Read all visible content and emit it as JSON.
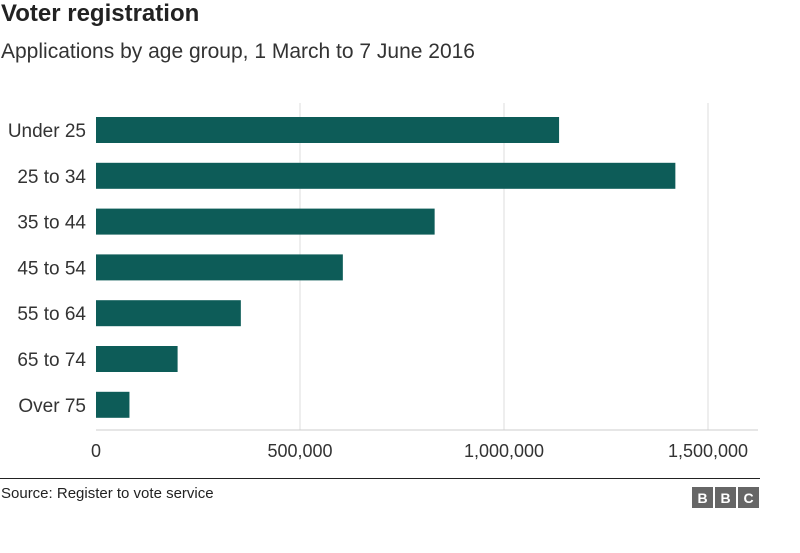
{
  "title": "Voter registration",
  "subtitle": "Applications by age group, 1 March to 7 June 2016",
  "source": "Source: Register to vote service",
  "logo_letters": [
    "B",
    "B",
    "C"
  ],
  "colors": {
    "bar": "#0d5c58",
    "grid": "#dddddd",
    "text": "#222222"
  },
  "chart_data": {
    "type": "bar",
    "orientation": "horizontal",
    "categories": [
      "Under 25",
      "25 to 34",
      "35 to 44",
      "45 to 54",
      "55 to 64",
      "65 to 74",
      "Over 75"
    ],
    "values": [
      1135000,
      1420000,
      830000,
      605000,
      355000,
      200000,
      82000
    ],
    "xlim": [
      0,
      1600000
    ],
    "xticks": [
      0,
      500000,
      1000000,
      1500000
    ],
    "xtick_labels": [
      "0",
      "500,000",
      "1,000,000",
      "1,500,000"
    ],
    "grid": true
  }
}
